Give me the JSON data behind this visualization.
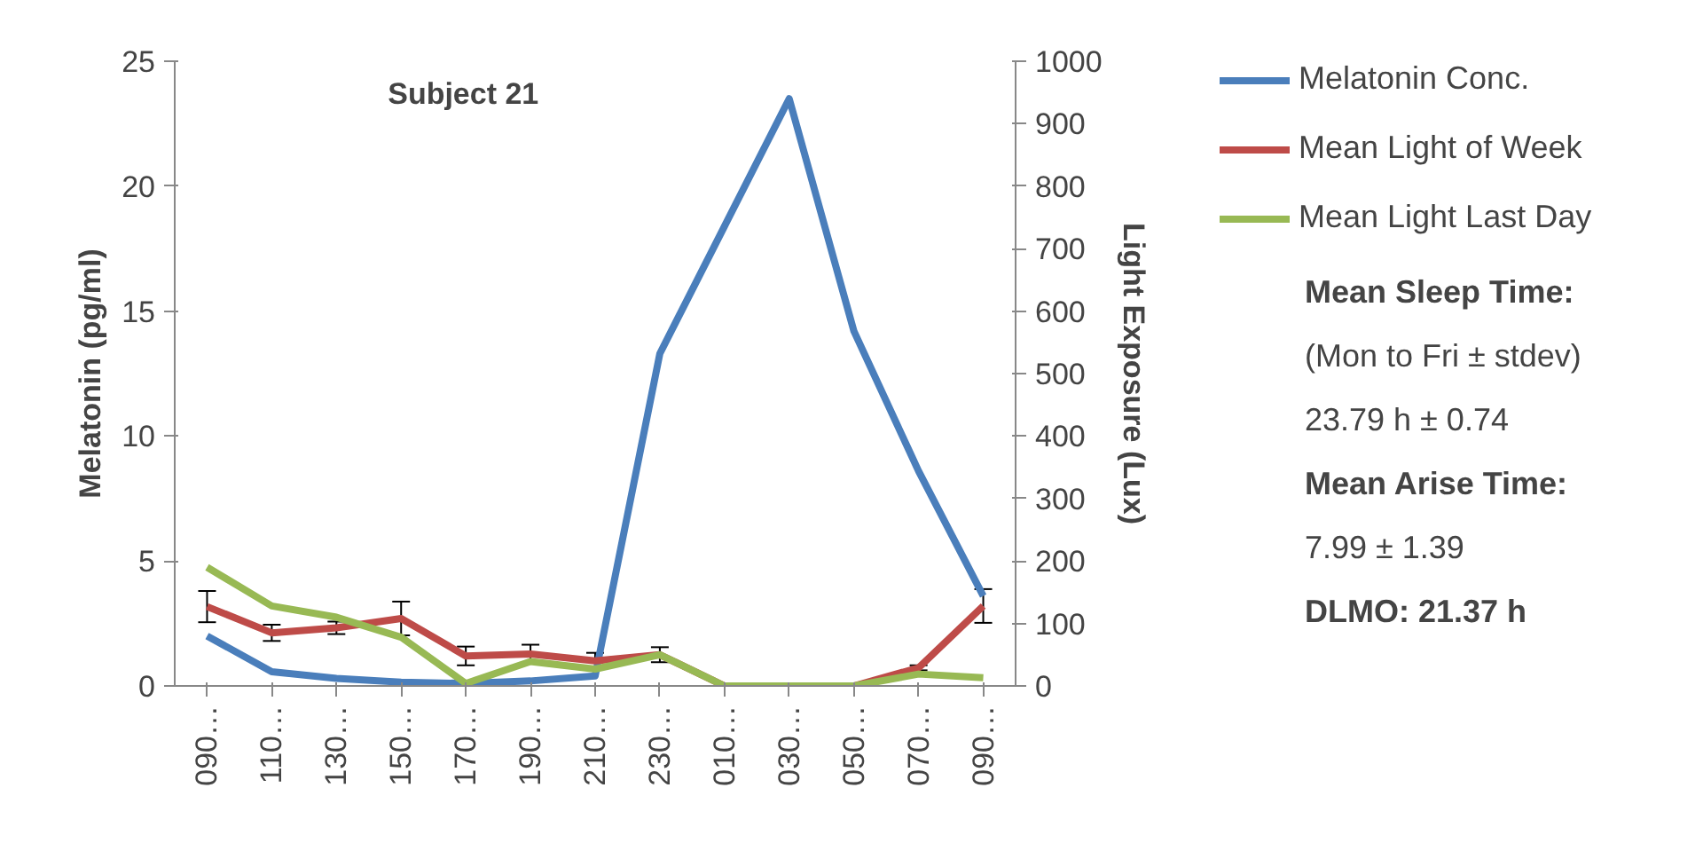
{
  "chart_data": {
    "type": "line",
    "title": "Subject 21",
    "ylabel": "Melatonin (pg/ml)",
    "y2label": "Light Exposure (Lux)",
    "categories": [
      "090…",
      "110…",
      "130…",
      "150…",
      "170…",
      "190…",
      "210…",
      "230…",
      "010…",
      "030…",
      "050…",
      "070…",
      "090…"
    ],
    "series": [
      {
        "name": "Melatonin Conc.",
        "color": "#4a7ebb",
        "values": [
          2.0,
          0.57,
          0.3,
          0.15,
          0.1,
          0.2,
          0.4,
          13.3,
          18.4,
          23.5,
          14.2,
          8.6,
          3.6
        ]
      },
      {
        "name": "Mean Light of Week",
        "color": "#be4b48",
        "axis": "y2",
        "values": [
          127,
          85,
          93,
          108,
          48,
          51,
          40,
          50,
          0,
          0,
          0,
          29,
          128
        ],
        "errors": [
          25,
          13,
          10,
          27,
          15,
          15,
          13,
          12,
          null,
          null,
          null,
          4,
          27
        ]
      },
      {
        "name": "Mean Light Last Day",
        "color": "#98b954",
        "axis": "y2",
        "values": [
          190,
          128,
          110,
          78,
          4,
          39,
          27,
          50,
          0,
          0,
          0,
          19,
          13
        ]
      }
    ],
    "ylim": [
      0,
      25
    ],
    "yticks": [
      0,
      5,
      10,
      15,
      20,
      25
    ],
    "y2lim": [
      0,
      1000
    ],
    "y2ticks": [
      0,
      100,
      200,
      300,
      400,
      500,
      600,
      700,
      800,
      900,
      1000
    ],
    "grid": false,
    "legend": "right",
    "marker": "none",
    "line_style": "solid",
    "annotations": [
      "Mean Sleep Time:",
      "(Mon to Fri ± stdev)",
      "23.79 h ± 0.74",
      "Mean Arise Time:",
      "7.99 ± 1.39",
      "DLMO: 21.37 h"
    ]
  }
}
